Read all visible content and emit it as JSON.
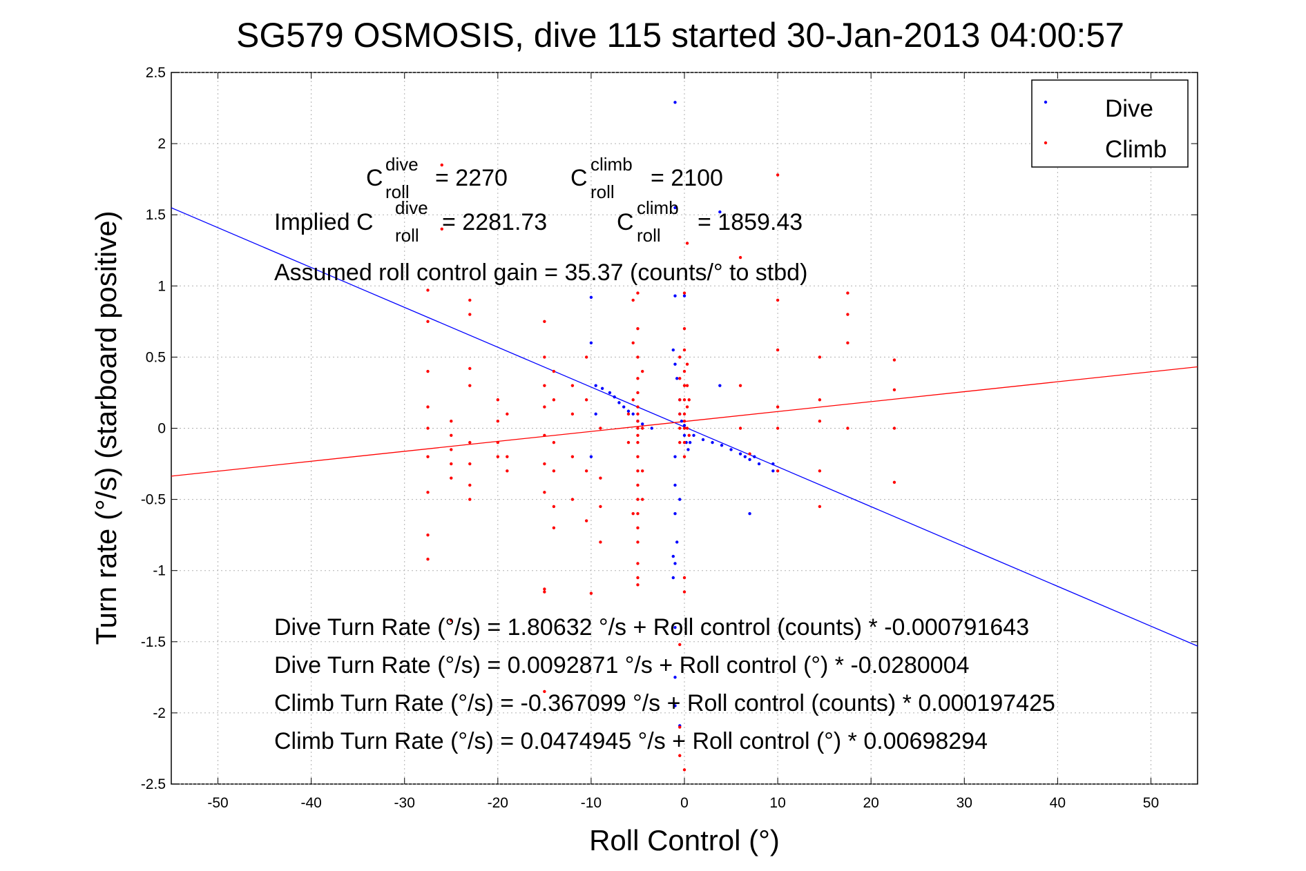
{
  "chart_data": {
    "type": "scatter",
    "title": "SG579 OSMOSIS, dive 115 started 30-Jan-2013 04:00:57",
    "xlabel": "Roll Control (°)",
    "ylabel": "Turn rate (°/s)  (starboard positive)",
    "xlim": [
      -55,
      55
    ],
    "ylim": [
      -2.5,
      2.5
    ],
    "x_ticks": [
      -50,
      -40,
      -30,
      -20,
      -10,
      0,
      10,
      20,
      30,
      40,
      50
    ],
    "y_ticks": [
      -2.5,
      -2,
      -1.5,
      -1,
      -0.5,
      0,
      0.5,
      1,
      1.5,
      2,
      2.5
    ],
    "grid": true,
    "legend_position": "top-right",
    "colors": {
      "dive": "#0000ff",
      "climb": "#ff0000"
    },
    "series": [
      {
        "name": "Dive",
        "color": "#0000ff",
        "fit": {
          "intercept": 0.0092871,
          "slope": -0.0280004
        },
        "points": [
          [
            -1,
            2.29
          ],
          [
            -1,
            1.55
          ],
          [
            3.8,
            1.52
          ],
          [
            -10,
            0.92
          ],
          [
            -1,
            0.93
          ],
          [
            0,
            0.93
          ],
          [
            -10,
            0.6
          ],
          [
            -9.5,
            0.3
          ],
          [
            -8.8,
            0.28
          ],
          [
            -8,
            0.25
          ],
          [
            -7.5,
            0.22
          ],
          [
            -7,
            0.18
          ],
          [
            -6.5,
            0.15
          ],
          [
            -6,
            0.12
          ],
          [
            -5.5,
            0.1
          ],
          [
            -5,
            0.05
          ],
          [
            -4.5,
            0.03
          ],
          [
            -3.5,
            0.0
          ],
          [
            -1.2,
            0.55
          ],
          [
            -1,
            0.45
          ],
          [
            -0.8,
            0.35
          ],
          [
            -0.5,
            0.2
          ],
          [
            -0.5,
            0.1
          ],
          [
            -0.3,
            0.05
          ],
          [
            0,
            0.02
          ],
          [
            0,
            -0.05
          ],
          [
            0.2,
            -0.1
          ],
          [
            0.4,
            -0.15
          ],
          [
            0.6,
            -0.1
          ],
          [
            1,
            -0.05
          ],
          [
            2,
            -0.08
          ],
          [
            3,
            -0.1
          ],
          [
            4,
            -0.12
          ],
          [
            5,
            -0.15
          ],
          [
            6,
            -0.18
          ],
          [
            6.5,
            -0.2
          ],
          [
            7,
            -0.22
          ],
          [
            7.5,
            -0.2
          ],
          [
            8,
            -0.25
          ],
          [
            9.5,
            -0.25
          ],
          [
            9.5,
            -0.3
          ],
          [
            7,
            -0.6
          ],
          [
            -1,
            -0.2
          ],
          [
            -1,
            -0.4
          ],
          [
            -1,
            -0.6
          ],
          [
            -0.8,
            -0.8
          ],
          [
            -0.5,
            -0.5
          ],
          [
            -1,
            -0.95
          ],
          [
            -1.2,
            -1.05
          ],
          [
            -1.2,
            -0.9
          ],
          [
            -1,
            -1.4
          ],
          [
            -1,
            -1.75
          ],
          [
            -1,
            -1.95
          ],
          [
            -0.5,
            -2.09
          ],
          [
            3.8,
            0.3
          ],
          [
            -9.5,
            0.1
          ],
          [
            -10,
            -0.2
          ]
        ]
      },
      {
        "name": "Climb",
        "color": "#ff0000",
        "fit": {
          "intercept": 0.0474945,
          "slope": 0.00698294
        },
        "points": [
          [
            -27.5,
            0.97
          ],
          [
            -27.5,
            0.75
          ],
          [
            -27.5,
            0.4
          ],
          [
            -27.5,
            0.15
          ],
          [
            -27.5,
            0.0
          ],
          [
            -27.5,
            -0.2
          ],
          [
            -27.5,
            -0.45
          ],
          [
            -27.5,
            -0.75
          ],
          [
            -27.5,
            -0.92
          ],
          [
            -25,
            0.05
          ],
          [
            -25,
            -0.05
          ],
          [
            -25,
            -0.15
          ],
          [
            -25,
            -0.25
          ],
          [
            -25,
            -0.35
          ],
          [
            -23,
            0.9
          ],
          [
            -23,
            0.8
          ],
          [
            -23,
            0.42
          ],
          [
            -23,
            0.3
          ],
          [
            -23,
            -0.1
          ],
          [
            -23,
            -0.25
          ],
          [
            -23,
            -0.4
          ],
          [
            -23,
            -0.5
          ],
          [
            -20,
            0.2
          ],
          [
            -20,
            0.05
          ],
          [
            -20,
            -0.1
          ],
          [
            -20,
            -0.2
          ],
          [
            -19,
            0.1
          ],
          [
            -19,
            -0.2
          ],
          [
            -19,
            -0.3
          ],
          [
            -15,
            0.75
          ],
          [
            -15,
            0.5
          ],
          [
            -15,
            0.3
          ],
          [
            -15,
            0.15
          ],
          [
            -15,
            -0.05
          ],
          [
            -15,
            -0.25
          ],
          [
            -15,
            -0.45
          ],
          [
            -15,
            -1.15
          ],
          [
            -14,
            0.4
          ],
          [
            -14,
            0.2
          ],
          [
            -14,
            -0.1
          ],
          [
            -14,
            -0.3
          ],
          [
            -14,
            -0.55
          ],
          [
            -14,
            -0.7
          ],
          [
            -12,
            0.3
          ],
          [
            -12,
            0.1
          ],
          [
            -12,
            -0.2
          ],
          [
            -12,
            -0.5
          ],
          [
            -10.5,
            0.5
          ],
          [
            -10.5,
            0.2
          ],
          [
            -10.5,
            -0.3
          ],
          [
            -10.5,
            -0.65
          ],
          [
            -10,
            -1.16
          ],
          [
            -9,
            0.0
          ],
          [
            -9,
            -0.35
          ],
          [
            -9,
            -0.55
          ],
          [
            -9,
            -0.8
          ],
          [
            -5.5,
            0.9
          ],
          [
            -5.5,
            0.6
          ],
          [
            -5.5,
            0.2
          ],
          [
            -5.5,
            -0.6
          ],
          [
            -5,
            0.95
          ],
          [
            -5,
            0.7
          ],
          [
            -5,
            0.5
          ],
          [
            -5,
            0.35
          ],
          [
            -5,
            0.25
          ],
          [
            -5,
            0.15
          ],
          [
            -5,
            0.1
          ],
          [
            -5,
            0.05
          ],
          [
            -5,
            0.0
          ],
          [
            -5,
            -0.05
          ],
          [
            -5,
            -0.1
          ],
          [
            -5,
            -0.2
          ],
          [
            -5,
            -0.3
          ],
          [
            -5,
            -0.4
          ],
          [
            -5,
            -0.5
          ],
          [
            -5,
            -0.6
          ],
          [
            -5,
            -0.7
          ],
          [
            -5,
            -0.8
          ],
          [
            -5,
            -0.95
          ],
          [
            -5,
            -1.05
          ],
          [
            -5,
            -1.1
          ],
          [
            -4.5,
            0.4
          ],
          [
            -4.5,
            0.0
          ],
          [
            -4.5,
            -0.3
          ],
          [
            -4.5,
            -0.5
          ],
          [
            -6,
            0.1
          ],
          [
            -6,
            -0.1
          ],
          [
            -0.5,
            0.5
          ],
          [
            -0.5,
            0.35
          ],
          [
            -0.5,
            0.2
          ],
          [
            -0.5,
            0.1
          ],
          [
            -0.5,
            0.0
          ],
          [
            -0.5,
            -0.1
          ],
          [
            0,
            0.95
          ],
          [
            0,
            0.7
          ],
          [
            0,
            0.55
          ],
          [
            0,
            0.4
          ],
          [
            0,
            0.3
          ],
          [
            0,
            0.2
          ],
          [
            0,
            0.1
          ],
          [
            0,
            0.05
          ],
          [
            0,
            0.0
          ],
          [
            0,
            -0.1
          ],
          [
            0,
            -0.2
          ],
          [
            0,
            -1.05
          ],
          [
            0,
            -1.15
          ],
          [
            0.3,
            1.3
          ],
          [
            0.3,
            0.45
          ],
          [
            0.3,
            0.3
          ],
          [
            0.3,
            0.15
          ],
          [
            0.3,
            0.0
          ],
          [
            0.5,
            0.2
          ],
          [
            0.5,
            -0.05
          ],
          [
            -0.5,
            -2.1
          ],
          [
            -0.5,
            -2.3
          ],
          [
            0,
            -2.4
          ],
          [
            6,
            1.2
          ],
          [
            6,
            0.3
          ],
          [
            6,
            0.0
          ],
          [
            7,
            -0.18
          ],
          [
            10,
            0.9
          ],
          [
            10,
            0.55
          ],
          [
            10,
            0.15
          ],
          [
            10,
            0.0
          ],
          [
            10,
            -0.3
          ],
          [
            14.5,
            0.5
          ],
          [
            14.5,
            0.2
          ],
          [
            14.5,
            0.05
          ],
          [
            14.5,
            -0.3
          ],
          [
            14.5,
            -0.55
          ],
          [
            17.5,
            0.95
          ],
          [
            17.5,
            0.8
          ],
          [
            17.5,
            0.6
          ],
          [
            17.5,
            0.0
          ],
          [
            10,
            1.78
          ],
          [
            22.5,
            0.48
          ],
          [
            22.5,
            0.27
          ],
          [
            22.5,
            0.0
          ],
          [
            22.5,
            -0.38
          ],
          [
            -26,
            1.4
          ],
          [
            -26,
            1.85
          ],
          [
            -25,
            -1.35
          ],
          [
            -15,
            -1.13
          ],
          [
            -15,
            -1.85
          ],
          [
            -0.5,
            -1.52
          ]
        ]
      }
    ]
  },
  "annotations": {
    "c_roll_dive_label": "C",
    "c_roll_dive_sup": "dive",
    "c_roll_dive_sub": "roll",
    "c_roll_dive_value": "= 2270",
    "c_roll_climb_label": "C",
    "c_roll_climb_sup": "climb",
    "c_roll_climb_sub": "roll",
    "c_roll_climb_value": "= 2100",
    "implied_prefix": "Implied C",
    "implied_dive_sup": "dive",
    "implied_dive_sub": "roll",
    "implied_dive_value": "= 2281.73",
    "implied_climb_label": "C",
    "implied_climb_sup": "climb",
    "implied_climb_sub": "roll",
    "implied_climb_value": "= 1859.43",
    "gain": "Assumed roll control gain = 35.37 (counts/° to stbd)",
    "eq1": "Dive Turn Rate (°/s) = 1.80632 °/s + Roll control (counts) * -0.000791643",
    "eq2": "Dive Turn Rate (°/s) = 0.0092871 °/s + Roll control (°) * -0.0280004",
    "eq3": "Climb Turn Rate (°/s) = -0.367099 °/s + Roll control (counts) * 0.000197425",
    "eq4": "Climb Turn Rate (°/s) = 0.0474945 °/s + Roll control (°) * 0.00698294"
  }
}
